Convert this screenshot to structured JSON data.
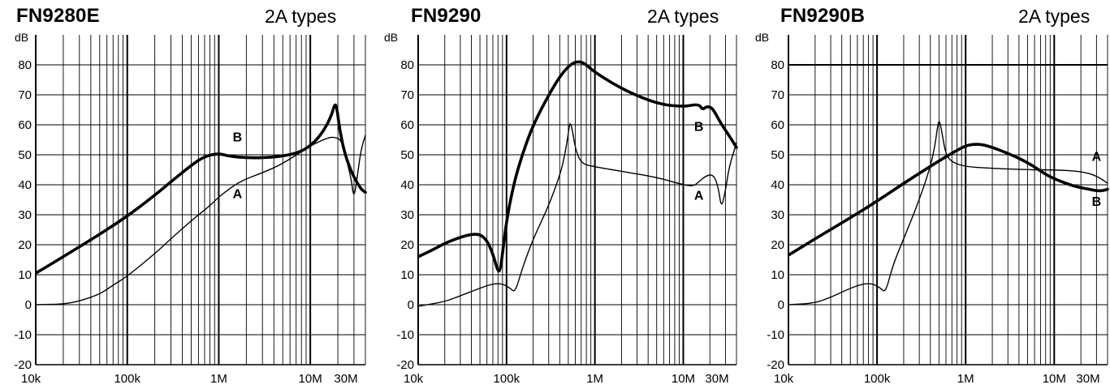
{
  "chart_data": [
    {
      "type": "line",
      "title": "FN9280E",
      "subtitle": "2A types",
      "ylabel": "dB",
      "xlabel": "",
      "xscale": "log",
      "xlim": [
        10000,
        40000000
      ],
      "ylim": [
        -20,
        90
      ],
      "x_tick_labels": [
        {
          "value": 10000,
          "label": "10k"
        },
        {
          "value": 100000,
          "label": "100k"
        },
        {
          "value": 1000000,
          "label": "1M"
        },
        {
          "value": 10000000,
          "label": "10M"
        },
        {
          "value": 30000000,
          "label": "30M"
        }
      ],
      "y_ticks": [
        -20,
        -10,
        0,
        10,
        20,
        30,
        40,
        50,
        60,
        70,
        80
      ],
      "grid": true,
      "series": [
        {
          "name": "B",
          "style": "thick",
          "x": [
            10000,
            20000,
            50000,
            100000,
            200000,
            300000,
            500000,
            700000,
            1000000,
            1300000,
            2000000,
            3000000,
            5000000,
            8000000,
            11000000,
            14000000,
            17000000,
            18500000,
            19500000,
            21000000,
            24000000,
            28000000,
            32000000,
            36000000,
            40000000
          ],
          "values": [
            10.5,
            16,
            23.5,
            29.5,
            36.5,
            41,
            46.5,
            49.5,
            50.5,
            49.5,
            49,
            49,
            49.5,
            51,
            54,
            58,
            63,
            67,
            66,
            58,
            50,
            44.5,
            41,
            38.5,
            37.5
          ]
        },
        {
          "name": "A",
          "style": "thin",
          "x": [
            10000,
            20000,
            30000,
            50000,
            70000,
            100000,
            200000,
            300000,
            500000,
            800000,
            1000000,
            1500000,
            2000000,
            3000000,
            5000000,
            10000000,
            15000000,
            18000000,
            22000000,
            25000000,
            28000000,
            30000000,
            33000000,
            36000000,
            40000000
          ],
          "values": [
            0,
            0.2,
            1.2,
            3.5,
            6.5,
            9.5,
            17,
            22,
            28,
            33,
            36,
            40,
            42,
            44,
            47,
            53,
            55.5,
            56,
            55,
            48,
            42,
            35,
            44,
            52,
            56.5
          ]
        }
      ],
      "annotations": [
        {
          "text": "B",
          "x": 1600000,
          "y": 54.5
        },
        {
          "text": "A",
          "x": 1600000,
          "y": 35.5
        }
      ]
    },
    {
      "type": "line",
      "title": "FN9290",
      "subtitle": "2A types",
      "ylabel": "dB",
      "xlabel": "",
      "xscale": "log",
      "xlim": [
        10000,
        40000000
      ],
      "ylim": [
        -20,
        90
      ],
      "x_tick_labels": [
        {
          "value": 10000,
          "label": "10k"
        },
        {
          "value": 100000,
          "label": "100k"
        },
        {
          "value": 1000000,
          "label": "1M"
        },
        {
          "value": 10000000,
          "label": "10M"
        },
        {
          "value": 30000000,
          "label": "30M"
        }
      ],
      "y_ticks": [
        -20,
        -10,
        0,
        10,
        20,
        30,
        40,
        50,
        60,
        70,
        80
      ],
      "grid": true,
      "series": [
        {
          "name": "B",
          "style": "thick",
          "x": [
            10000,
            15000,
            20000,
            30000,
            40000,
            50000,
            60000,
            70000,
            80000,
            85000,
            90000,
            100000,
            120000,
            150000,
            200000,
            300000,
            400000,
            500000,
            600000,
            700000,
            800000,
            1000000,
            2000000,
            5000000,
            10000000,
            15000000,
            16500000,
            18000000,
            20000000,
            22000000,
            26000000,
            32000000,
            40000000
          ],
          "values": [
            16,
            18.5,
            20.5,
            22.5,
            23.5,
            23.5,
            21.5,
            17,
            11,
            11.5,
            17,
            28,
            40,
            50,
            60,
            70,
            76,
            79.5,
            81,
            81,
            80,
            77.5,
            72,
            67,
            66,
            67,
            65,
            66,
            66,
            65,
            61,
            57,
            52.5
          ]
        },
        {
          "name": "A",
          "style": "thin",
          "x": [
            10000,
            20000,
            30000,
            50000,
            70000,
            90000,
            110000,
            125000,
            150000,
            200000,
            300000,
            400000,
            450000,
            500000,
            520000,
            550000,
            600000,
            700000,
            1000000,
            2000000,
            5000000,
            10000000,
            13000000,
            15000000,
            18000000,
            22000000,
            25000000,
            27000000,
            30000000,
            33000000,
            40000000
          ],
          "values": [
            -0.5,
            1,
            3,
            5.5,
            7,
            7,
            5.5,
            4,
            12,
            22,
            33,
            43,
            49,
            57,
            61,
            59,
            52,
            47,
            46,
            44.5,
            42.5,
            40,
            39.5,
            41,
            43,
            43.5,
            39,
            32,
            38,
            46,
            54
          ]
        }
      ],
      "annotations": [
        {
          "text": "B",
          "x": 15000000,
          "y": 58
        },
        {
          "text": "A",
          "x": 15000000,
          "y": 35
        }
      ]
    },
    {
      "type": "line",
      "title": "FN9290B",
      "subtitle": "2A types",
      "ylabel": "dB",
      "xlabel": "",
      "xscale": "log",
      "xlim": [
        10000,
        40000000
      ],
      "ylim": [
        -20,
        90
      ],
      "x_tick_labels": [
        {
          "value": 10000,
          "label": "10k"
        },
        {
          "value": 100000,
          "label": "100k"
        },
        {
          "value": 1000000,
          "label": "1M"
        },
        {
          "value": 10000000,
          "label": "10M"
        },
        {
          "value": 30000000,
          "label": "30M"
        }
      ],
      "y_ticks": [
        -20,
        -10,
        0,
        10,
        20,
        30,
        40,
        50,
        60,
        70,
        80
      ],
      "grid": true,
      "series": [
        {
          "name": "B",
          "style": "thick",
          "x": [
            10000,
            20000,
            50000,
            100000,
            200000,
            500000,
            800000,
            1000000,
            1200000,
            1500000,
            2000000,
            3000000,
            5000000,
            8000000,
            10000000,
            15000000,
            20000000,
            25000000,
            30000000,
            35000000,
            40000000
          ],
          "values": [
            16.5,
            22,
            29,
            34.5,
            40.5,
            48,
            51.5,
            53,
            53.5,
            53.5,
            52.5,
            50.5,
            47.5,
            43.5,
            42,
            40,
            39,
            38.5,
            38,
            38,
            38.5
          ]
        },
        {
          "name": "A",
          "style": "thin",
          "x": [
            10000,
            20000,
            30000,
            50000,
            70000,
            90000,
            110000,
            125000,
            150000,
            200000,
            300000,
            400000,
            450000,
            480000,
            500000,
            520000,
            550000,
            600000,
            700000,
            1000000,
            2000000,
            5000000,
            10000000,
            20000000,
            30000000,
            40000000
          ],
          "values": [
            0,
            0.5,
            2.5,
            5.5,
            7,
            7,
            5.5,
            4,
            13,
            22,
            35,
            46,
            53,
            59,
            61.5,
            60,
            56,
            50,
            47.5,
            46,
            45.5,
            45,
            45,
            44.5,
            43,
            40.5
          ]
        }
      ],
      "annotations": [
        {
          "text": "A",
          "x": 30000000,
          "y": 48
        },
        {
          "text": "B",
          "x": 30000000,
          "y": 33
        }
      ]
    }
  ]
}
